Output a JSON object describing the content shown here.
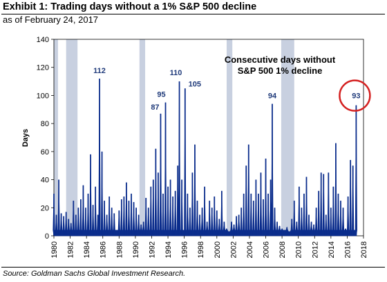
{
  "header": {
    "title": "Exhibit 1: Trading days without a 1% S&P 500 decline",
    "subtitle": "as of February 24, 2017"
  },
  "footer": {
    "source": "Source: Goldman Sachs Global Investment Research."
  },
  "colors": {
    "series": "#0b2d8c",
    "recession": "#c8d0e0",
    "highlight_circle": "#d42020",
    "annotation": "#1f3a7a"
  },
  "chart_data": {
    "type": "bar",
    "ylabel": "Days",
    "xlabel": "",
    "xlim": [
      1980,
      2018
    ],
    "ylim": [
      0,
      140
    ],
    "yticks": [
      0,
      20,
      40,
      60,
      80,
      100,
      120,
      140
    ],
    "xticks": [
      1980,
      1982,
      1984,
      1986,
      1988,
      1990,
      1992,
      1994,
      1996,
      1998,
      2000,
      2002,
      2004,
      2006,
      2008,
      2010,
      2012,
      2014,
      2016,
      2018
    ],
    "note_lines": [
      "Consecutive days without",
      "S&P 500 1% decline"
    ],
    "recessions": [
      [
        1980.0,
        1980.5
      ],
      [
        1981.5,
        1982.9
      ],
      [
        1990.5,
        1991.2
      ],
      [
        2001.2,
        2001.9
      ],
      [
        2007.9,
        2009.5
      ]
    ],
    "peaks": [
      {
        "x": 1985.6,
        "value": 112,
        "label": "112"
      },
      {
        "x": 1993.1,
        "value": 87,
        "label": "87"
      },
      {
        "x": 1993.7,
        "value": 95,
        "label": "95"
      },
      {
        "x": 1995.4,
        "value": 110,
        "label": "110"
      },
      {
        "x": 1996.1,
        "value": 105,
        "label": "105"
      },
      {
        "x": 2006.8,
        "value": 94,
        "label": "94"
      },
      {
        "x": 2017.1,
        "value": 93,
        "label": "93"
      }
    ],
    "series": [
      {
        "x": [
          1980.0,
          1980.3,
          1980.6,
          1980.9,
          1981.2,
          1981.5,
          1981.8,
          1982.1,
          1982.4,
          1982.7,
          1983.0,
          1983.3,
          1983.6,
          1983.9,
          1984.2,
          1984.5,
          1984.8,
          1985.1,
          1985.4,
          1985.6,
          1985.9,
          1986.2,
          1986.5,
          1986.8,
          1987.1,
          1987.4,
          1987.7,
          1988.0,
          1988.3,
          1988.6,
          1988.9,
          1989.2,
          1989.5,
          1989.8,
          1990.1,
          1990.4,
          1990.7,
          1991.0,
          1991.3,
          1991.6,
          1991.9,
          1992.2,
          1992.5,
          1992.8,
          1993.1,
          1993.4,
          1993.7,
          1994.0,
          1994.3,
          1994.6,
          1994.9,
          1995.2,
          1995.4,
          1995.7,
          1996.1,
          1996.4,
          1996.7,
          1997.0,
          1997.3,
          1997.6,
          1997.9,
          1998.2,
          1998.5,
          1998.8,
          1999.1,
          1999.4,
          1999.7,
          2000.0,
          2000.3,
          2000.6,
          2000.9,
          2001.2,
          2001.5,
          2001.8,
          2002.1,
          2002.4,
          2002.7,
          2003.0,
          2003.3,
          2003.6,
          2003.9,
          2004.2,
          2004.5,
          2004.8,
          2005.1,
          2005.4,
          2005.7,
          2006.0,
          2006.3,
          2006.6,
          2006.8,
          2007.1,
          2007.4,
          2007.7,
          2008.0,
          2008.3,
          2008.6,
          2008.9,
          2009.2,
          2009.5,
          2009.8,
          2010.1,
          2010.4,
          2010.7,
          2011.0,
          2011.3,
          2011.6,
          2011.9,
          2012.2,
          2012.5,
          2012.8,
          2013.1,
          2013.4,
          2013.7,
          2014.0,
          2014.3,
          2014.6,
          2014.9,
          2015.2,
          2015.5,
          2015.8,
          2016.1,
          2016.4,
          2016.7,
          2017.1
        ],
        "values": [
          30,
          15,
          40,
          16,
          14,
          17,
          12,
          9,
          25,
          15,
          20,
          26,
          36,
          20,
          30,
          58,
          22,
          35,
          15,
          112,
          60,
          25,
          15,
          28,
          20,
          16,
          4,
          18,
          26,
          28,
          38,
          25,
          30,
          24,
          20,
          15,
          8,
          10,
          27,
          20,
          35,
          40,
          62,
          45,
          87,
          30,
          95,
          35,
          40,
          28,
          32,
          50,
          110,
          40,
          105,
          30,
          20,
          45,
          65,
          25,
          15,
          20,
          35,
          10,
          25,
          20,
          28,
          18,
          12,
          32,
          10,
          5,
          3,
          10,
          8,
          14,
          15,
          20,
          30,
          50,
          65,
          30,
          25,
          40,
          30,
          45,
          26,
          55,
          30,
          40,
          94,
          20,
          10,
          7,
          5,
          4,
          6,
          3,
          12,
          25,
          10,
          35,
          20,
          30,
          42,
          15,
          10,
          8,
          20,
          32,
          45,
          44,
          15,
          45,
          20,
          35,
          66,
          30,
          25,
          20,
          5,
          28,
          54,
          50,
          93
        ]
      }
    ]
  }
}
